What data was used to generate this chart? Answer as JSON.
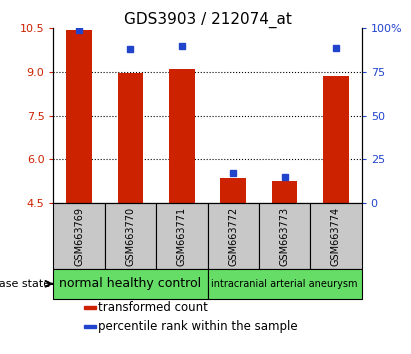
{
  "title": "GDS3903 / 212074_at",
  "samples": [
    "GSM663769",
    "GSM663770",
    "GSM663771",
    "GSM663772",
    "GSM663773",
    "GSM663774"
  ],
  "transformed_count": [
    10.45,
    8.98,
    9.12,
    5.35,
    5.27,
    8.88
  ],
  "percentile_rank": [
    99,
    88,
    90,
    17,
    15,
    89
  ],
  "ylim_left": [
    4.5,
    10.5
  ],
  "ylim_right": [
    0,
    100
  ],
  "yticks_left": [
    4.5,
    6.0,
    7.5,
    9.0,
    10.5
  ],
  "yticks_right": [
    0,
    25,
    50,
    75,
    100
  ],
  "ytick_labels_right": [
    "0",
    "25",
    "50",
    "75",
    "100%"
  ],
  "bar_bottom": 4.5,
  "groups": [
    {
      "label": "normal healthy control",
      "samples_idx": [
        0,
        1,
        2
      ],
      "fontsize": 9
    },
    {
      "label": "intracranial arterial aneurysm",
      "samples_idx": [
        3,
        4,
        5
      ],
      "fontsize": 7
    }
  ],
  "disease_state_label": "disease state",
  "bar_color_red": "#CC2200",
  "bar_color_blue": "#2244CC",
  "background_gray": "#C8C8C8",
  "group_color": "#66DD66",
  "legend_items": [
    {
      "color": "#CC2200",
      "label": "transformed count"
    },
    {
      "color": "#2244CC",
      "label": "percentile rank within the sample"
    }
  ],
  "tick_color_left": "#CC2200",
  "tick_color_right": "#2244CC",
  "title_fontsize": 11,
  "axis_fontsize": 8,
  "legend_fontsize": 8.5,
  "sample_fontsize": 7,
  "bar_width": 0.5
}
